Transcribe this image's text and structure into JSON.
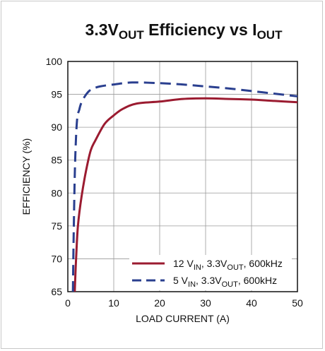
{
  "chart_data": {
    "type": "line",
    "title": {
      "parts": [
        {
          "text": "3.3V",
          "sub": false
        },
        {
          "text": "OUT",
          "sub": true
        },
        {
          "text": " Efficiency vs I",
          "sub": false
        },
        {
          "text": "OUT",
          "sub": true
        }
      ]
    },
    "xlabel": "LOAD CURRENT (A)",
    "ylabel": "EFFICIENCY (%)",
    "xlim": [
      0,
      50
    ],
    "ylim": [
      65,
      100
    ],
    "xticks": [
      0,
      10,
      20,
      30,
      40,
      50
    ],
    "yticks": [
      65,
      70,
      75,
      80,
      85,
      90,
      95,
      100
    ],
    "grid": true,
    "legend_position": "bottom-right",
    "series": [
      {
        "name_parts": [
          {
            "text": "12 V",
            "sub": false
          },
          {
            "text": "IN",
            "sub": true
          },
          {
            "text": ", 3.3V",
            "sub": false
          },
          {
            "text": "OUT",
            "sub": true
          },
          {
            "text": ", 600kHz",
            "sub": false
          }
        ],
        "color": "#9b1b30",
        "dash": "solid",
        "x": [
          1.5,
          1.8,
          2.2,
          3,
          4,
          5,
          6,
          8,
          10,
          12,
          15,
          20,
          25,
          30,
          35,
          40,
          45,
          50
        ],
        "y": [
          65,
          70,
          75,
          79.5,
          83.5,
          86.5,
          88,
          90.5,
          91.8,
          92.8,
          93.6,
          93.9,
          94.3,
          94.4,
          94.3,
          94.2,
          94.0,
          93.8
        ]
      },
      {
        "name_parts": [
          {
            "text": "5 V",
            "sub": false
          },
          {
            "text": "IN",
            "sub": true
          },
          {
            "text": ", 3.3V",
            "sub": false
          },
          {
            "text": "OUT",
            "sub": true
          },
          {
            "text": ", 600kHz",
            "sub": false
          }
        ],
        "color": "#2a3f8f",
        "dash": "dashed",
        "x": [
          1.1,
          1.3,
          1.6,
          2,
          2.5,
          3,
          4,
          5,
          7,
          10,
          14,
          20,
          25,
          30,
          35,
          40,
          45,
          50
        ],
        "y": [
          65,
          75,
          85,
          91,
          92.7,
          93.8,
          95,
          95.7,
          96.2,
          96.5,
          96.8,
          96.7,
          96.5,
          96.2,
          95.9,
          95.5,
          95.1,
          94.7
        ]
      }
    ]
  }
}
